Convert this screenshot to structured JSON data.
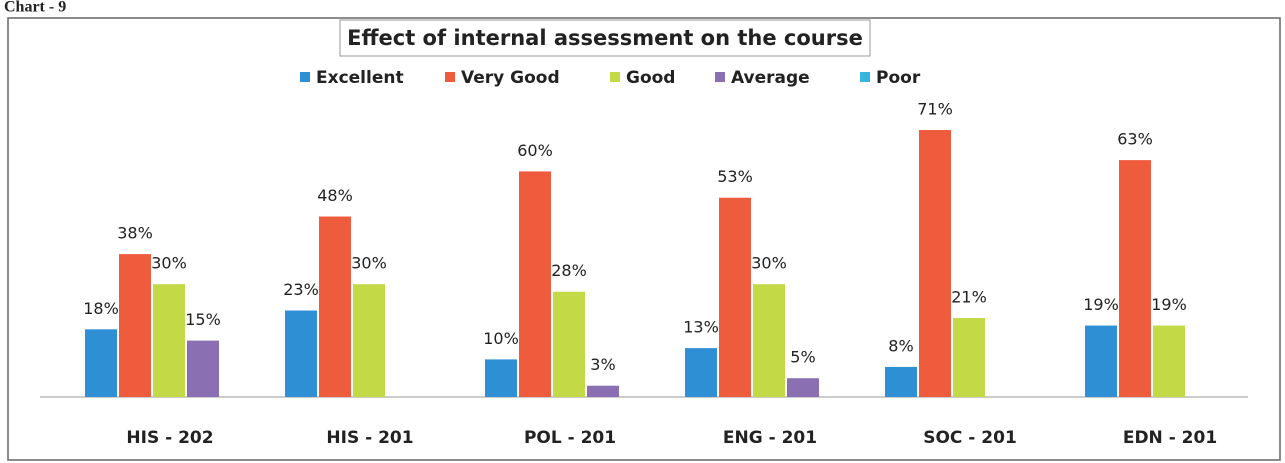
{
  "chart_data": {
    "type": "bar",
    "label": "Chart - 9",
    "title": "Effect of internal assessment on the course",
    "categories": [
      "HIS - 202",
      "HIS - 201",
      "POL - 201",
      "ENG - 201",
      "SOC - 201",
      "EDN - 201"
    ],
    "series": [
      {
        "name": "Excellent",
        "color": "#2f8fd5",
        "values": [
          18,
          23,
          10,
          13,
          8,
          19
        ],
        "value_labels": [
          "18%",
          "23%",
          "10%",
          "13%",
          "8%",
          "19%"
        ]
      },
      {
        "name": "Very Good",
        "color": "#ef5b3d",
        "values": [
          38,
          48,
          60,
          53,
          71,
          63
        ],
        "value_labels": [
          "38%",
          "48%",
          "60%",
          "53%",
          "71%",
          "63%"
        ]
      },
      {
        "name": "Good",
        "color": "#c3d946",
        "values": [
          30,
          30,
          28,
          30,
          21,
          19
        ],
        "value_labels": [
          "30%",
          "30%",
          "28%",
          "30%",
          "21%",
          "19%"
        ]
      },
      {
        "name": "Average",
        "color": "#8a70b2",
        "values": [
          15,
          null,
          3,
          5,
          null,
          null
        ],
        "value_labels": [
          "15%",
          null,
          "3%",
          "5%",
          null,
          null
        ]
      },
      {
        "name": "Poor",
        "color": "#35b6de",
        "values": [
          null,
          null,
          null,
          null,
          null,
          null
        ],
        "value_labels": [
          null,
          null,
          null,
          null,
          null,
          null
        ]
      }
    ]
  }
}
